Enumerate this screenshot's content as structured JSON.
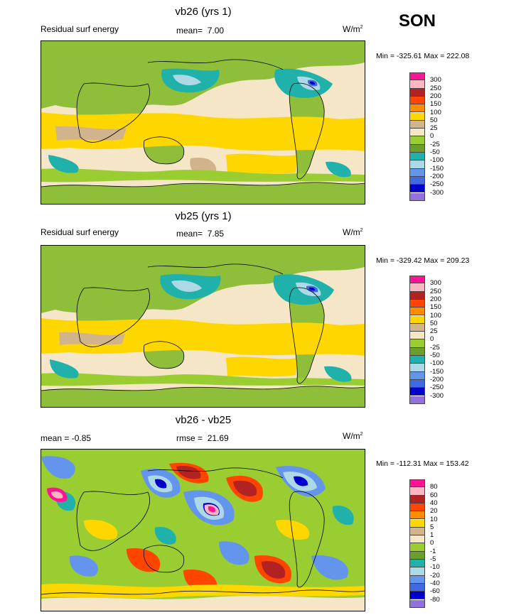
{
  "season": "SON",
  "units": "W/m",
  "units_sup": "2",
  "panels": [
    {
      "title": "vb26 (yrs 1)",
      "left_label": "Residual surf energy",
      "stat_label": "mean=",
      "stat_value": "7.00",
      "min_max": "Min = -325.61 Max = 222.08"
    },
    {
      "title": "vb25 (yrs 1)",
      "left_label": "Residual surf energy",
      "stat_label": "mean=",
      "stat_value": "7.85",
      "min_max": "Min = -329.42 Max = 209.23"
    },
    {
      "title": "vb26 - vb25",
      "left_label": "mean =  -0.85",
      "stat_label": "rmse =",
      "stat_value": "21.69",
      "min_max": "Min = -112.31 Max = 153.42"
    }
  ],
  "colorbars": {
    "field": {
      "labels": [
        "300",
        "250",
        "200",
        "150",
        "100",
        "50",
        "25",
        "0",
        "-25",
        "-50",
        "-100",
        "-150",
        "-200",
        "-250",
        "-300"
      ],
      "colors": [
        "#ff1493",
        "#ffb6c1",
        "#b22222",
        "#ff4500",
        "#ff8c00",
        "#ffd700",
        "#d2b48c",
        "#f5e6c8",
        "#9acd32",
        "#6b9e2a",
        "#20b2aa",
        "#add8e6",
        "#6495ed",
        "#4169e1",
        "#0000cd",
        "#9370db"
      ]
    },
    "diff": {
      "labels": [
        "80",
        "60",
        "40",
        "20",
        "10",
        "5",
        "1",
        "0",
        "-1",
        "-5",
        "-10",
        "-20",
        "-40",
        "-60",
        "-80"
      ],
      "colors": [
        "#ff1493",
        "#ffb6c1",
        "#b22222",
        "#ff4500",
        "#ff8c00",
        "#ffd700",
        "#d2b48c",
        "#f5e6c8",
        "#9acd32",
        "#6b9e2a",
        "#20b2aa",
        "#add8e6",
        "#6495ed",
        "#4169e1",
        "#0000cd",
        "#9370db"
      ]
    }
  },
  "chart_data": [
    {
      "type": "heatmap",
      "title": "vb26 (yrs 1)",
      "variable": "Residual surf energy",
      "units": "W/m2",
      "mean": 7.0,
      "min": -325.61,
      "max": 222.08,
      "levels": [
        -300,
        -250,
        -200,
        -150,
        -100,
        -50,
        -25,
        0,
        25,
        50,
        100,
        150,
        200,
        250,
        300
      ]
    },
    {
      "type": "heatmap",
      "title": "vb25 (yrs 1)",
      "variable": "Residual surf energy",
      "units": "W/m2",
      "mean": 7.85,
      "min": -329.42,
      "max": 209.23,
      "levels": [
        -300,
        -250,
        -200,
        -150,
        -100,
        -50,
        -25,
        0,
        25,
        50,
        100,
        150,
        200,
        250,
        300
      ]
    },
    {
      "type": "heatmap",
      "title": "vb26 - vb25",
      "units": "W/m2",
      "mean": -0.85,
      "rmse": 21.69,
      "min": -112.31,
      "max": 153.42,
      "levels": [
        -80,
        -60,
        -40,
        -20,
        -10,
        -5,
        -1,
        0,
        1,
        5,
        10,
        20,
        40,
        60,
        80
      ]
    }
  ]
}
